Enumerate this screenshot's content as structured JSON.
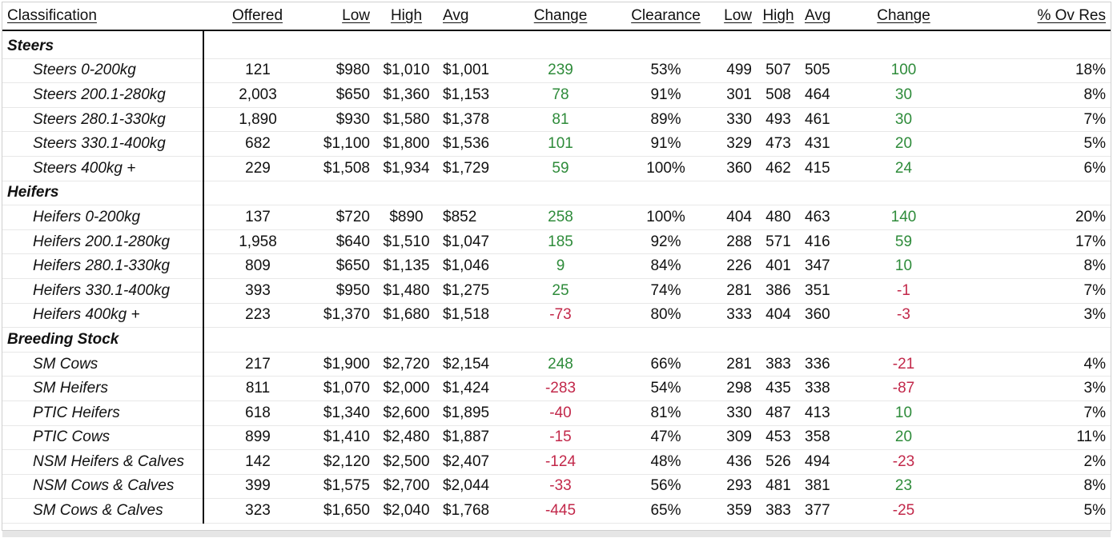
{
  "header": {
    "classification": "Classification",
    "offered": "Offered",
    "low": "Low",
    "high": "High",
    "avg": "Avg",
    "change": "Change",
    "clearance": "Clearance",
    "low2": "Low",
    "high2": "High",
    "avg2": "Avg",
    "change2": "Change",
    "ov_res": "% Ov Res"
  },
  "groups": [
    {
      "name": "Steers",
      "rows": [
        {
          "name": "Steers 0-200kg",
          "offered": "121",
          "low": "$980",
          "high": "$1,010",
          "avg": "$1,001",
          "change": "239",
          "change_sign": "pos",
          "clearance": "53%",
          "low2": "499",
          "high2": "507",
          "avg2": "505",
          "change2": "100",
          "change2_sign": "pos",
          "ov_res": "18%"
        },
        {
          "name": "Steers 200.1-280kg",
          "offered": "2,003",
          "low": "$650",
          "high": "$1,360",
          "avg": "$1,153",
          "change": "78",
          "change_sign": "pos",
          "clearance": "91%",
          "low2": "301",
          "high2": "508",
          "avg2": "464",
          "change2": "30",
          "change2_sign": "pos",
          "ov_res": "8%"
        },
        {
          "name": "Steers 280.1-330kg",
          "offered": "1,890",
          "low": "$930",
          "high": "$1,580",
          "avg": "$1,378",
          "change": "81",
          "change_sign": "pos",
          "clearance": "89%",
          "low2": "330",
          "high2": "493",
          "avg2": "461",
          "change2": "30",
          "change2_sign": "pos",
          "ov_res": "7%"
        },
        {
          "name": "Steers 330.1-400kg",
          "offered": "682",
          "low": "$1,100",
          "high": "$1,800",
          "avg": "$1,536",
          "change": "101",
          "change_sign": "pos",
          "clearance": "91%",
          "low2": "329",
          "high2": "473",
          "avg2": "431",
          "change2": "20",
          "change2_sign": "pos",
          "ov_res": "5%"
        },
        {
          "name": "Steers 400kg +",
          "offered": "229",
          "low": "$1,508",
          "high": "$1,934",
          "avg": "$1,729",
          "change": "59",
          "change_sign": "pos",
          "clearance": "100%",
          "low2": "360",
          "high2": "462",
          "avg2": "415",
          "change2": "24",
          "change2_sign": "pos",
          "ov_res": "6%"
        }
      ]
    },
    {
      "name": "Heifers",
      "rows": [
        {
          "name": "Heifers 0-200kg",
          "offered": "137",
          "low": "$720",
          "high": "$890",
          "avg": "$852",
          "change": "258",
          "change_sign": "pos",
          "clearance": "100%",
          "low2": "404",
          "high2": "480",
          "avg2": "463",
          "change2": "140",
          "change2_sign": "pos",
          "ov_res": "20%"
        },
        {
          "name": "Heifers 200.1-280kg",
          "offered": "1,958",
          "low": "$640",
          "high": "$1,510",
          "avg": "$1,047",
          "change": "185",
          "change_sign": "pos",
          "clearance": "92%",
          "low2": "288",
          "high2": "571",
          "avg2": "416",
          "change2": "59",
          "change2_sign": "pos",
          "ov_res": "17%"
        },
        {
          "name": "Heifers 280.1-330kg",
          "offered": "809",
          "low": "$650",
          "high": "$1,135",
          "avg": "$1,046",
          "change": "9",
          "change_sign": "pos",
          "clearance": "84%",
          "low2": "226",
          "high2": "401",
          "avg2": "347",
          "change2": "10",
          "change2_sign": "pos",
          "ov_res": "8%"
        },
        {
          "name": "Heifers 330.1-400kg",
          "offered": "393",
          "low": "$950",
          "high": "$1,480",
          "avg": "$1,275",
          "change": "25",
          "change_sign": "pos",
          "clearance": "74%",
          "low2": "281",
          "high2": "386",
          "avg2": "351",
          "change2": "-1",
          "change2_sign": "neg",
          "ov_res": "7%"
        },
        {
          "name": "Heifers 400kg +",
          "offered": "223",
          "low": "$1,370",
          "high": "$1,680",
          "avg": "$1,518",
          "change": "-73",
          "change_sign": "neg",
          "clearance": "80%",
          "low2": "333",
          "high2": "404",
          "avg2": "360",
          "change2": "-3",
          "change2_sign": "neg",
          "ov_res": "3%"
        }
      ]
    },
    {
      "name": "Breeding Stock",
      "rows": [
        {
          "name": "SM Cows",
          "offered": "217",
          "low": "$1,900",
          "high": "$2,720",
          "avg": "$2,154",
          "change": "248",
          "change_sign": "pos",
          "clearance": "66%",
          "low2": "281",
          "high2": "383",
          "avg2": "336",
          "change2": "-21",
          "change2_sign": "neg",
          "ov_res": "4%"
        },
        {
          "name": "SM Heifers",
          "offered": "811",
          "low": "$1,070",
          "high": "$2,000",
          "avg": "$1,424",
          "change": "-283",
          "change_sign": "neg",
          "clearance": "54%",
          "low2": "298",
          "high2": "435",
          "avg2": "338",
          "change2": "-87",
          "change2_sign": "neg",
          "ov_res": "3%"
        },
        {
          "name": "PTIC Heifers",
          "offered": "618",
          "low": "$1,340",
          "high": "$2,600",
          "avg": "$1,895",
          "change": "-40",
          "change_sign": "neg",
          "clearance": "81%",
          "low2": "330",
          "high2": "487",
          "avg2": "413",
          "change2": "10",
          "change2_sign": "pos",
          "ov_res": "7%"
        },
        {
          "name": "PTIC Cows",
          "offered": "899",
          "low": "$1,410",
          "high": "$2,480",
          "avg": "$1,887",
          "change": "-15",
          "change_sign": "neg",
          "clearance": "47%",
          "low2": "309",
          "high2": "453",
          "avg2": "358",
          "change2": "20",
          "change2_sign": "pos",
          "ov_res": "11%"
        },
        {
          "name": "NSM Heifers & Calves",
          "offered": "142",
          "low": "$2,120",
          "high": "$2,500",
          "avg": "$2,407",
          "change": "-124",
          "change_sign": "neg",
          "clearance": "48%",
          "low2": "436",
          "high2": "526",
          "avg2": "494",
          "change2": "-23",
          "change2_sign": "neg",
          "ov_res": "2%"
        },
        {
          "name": "NSM Cows & Calves",
          "offered": "399",
          "low": "$1,575",
          "high": "$2,700",
          "avg": "$2,044",
          "change": "-33",
          "change_sign": "neg",
          "clearance": "56%",
          "low2": "293",
          "high2": "481",
          "avg2": "381",
          "change2": "23",
          "change2_sign": "pos",
          "ov_res": "8%"
        },
        {
          "name": "SM Cows & Calves",
          "offered": "323",
          "low": "$1,650",
          "high": "$2,040",
          "avg": "$1,768",
          "change": "-445",
          "change_sign": "neg",
          "clearance": "65%",
          "low2": "359",
          "high2": "383",
          "avg2": "377",
          "change2": "-25",
          "change2_sign": "neg",
          "ov_res": "5%"
        }
      ]
    }
  ],
  "colors": {
    "positive": "#2e8b3a",
    "negative": "#c2284a"
  }
}
